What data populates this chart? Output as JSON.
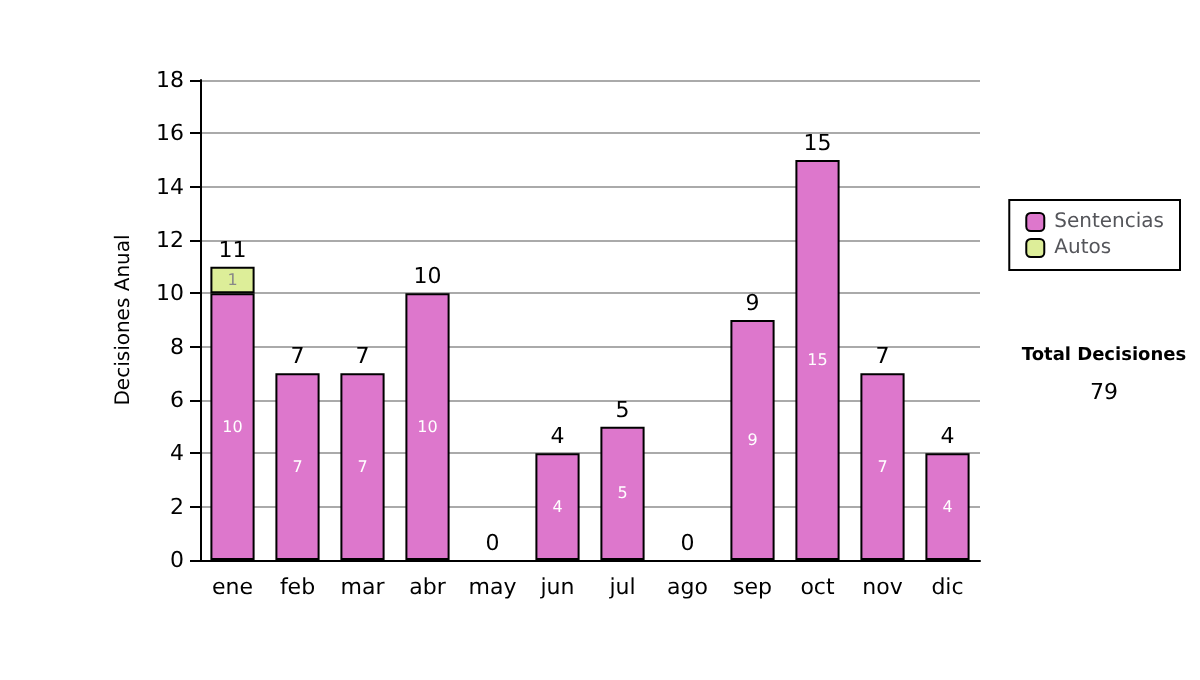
{
  "chart_data": {
    "type": "bar",
    "stacked": true,
    "ylabel": "Decisiones Anual",
    "categories": [
      "ene",
      "feb",
      "mar",
      "abr",
      "may",
      "jun",
      "jul",
      "ago",
      "sep",
      "oct",
      "nov",
      "dic"
    ],
    "series": [
      {
        "name": "Sentencias",
        "color": "#dd77cc",
        "values": [
          10,
          7,
          7,
          10,
          0,
          4,
          5,
          0,
          9,
          15,
          7,
          4
        ],
        "value_labels": [
          "10",
          "7",
          "7",
          "10",
          null,
          "4",
          "5",
          null,
          "9",
          "15",
          "7",
          "4"
        ]
      },
      {
        "name": "Autos",
        "color": "#ddee99",
        "values": [
          1,
          0,
          0,
          0,
          0,
          0,
          0,
          0,
          0,
          0,
          0,
          0
        ],
        "value_labels": [
          "1",
          null,
          null,
          null,
          null,
          null,
          null,
          null,
          null,
          null,
          null,
          null
        ]
      }
    ],
    "totals": [
      "11",
      "7",
      "7",
      "10",
      "0",
      "4",
      "5",
      "0",
      "9",
      "15",
      "7",
      "4"
    ],
    "ylim": [
      0,
      18
    ],
    "yticks": [
      0,
      2,
      4,
      6,
      8,
      10,
      12,
      14,
      16,
      18
    ],
    "grid": "y",
    "legend": "right",
    "annotations": [
      "Total Decisiones",
      "79"
    ]
  }
}
